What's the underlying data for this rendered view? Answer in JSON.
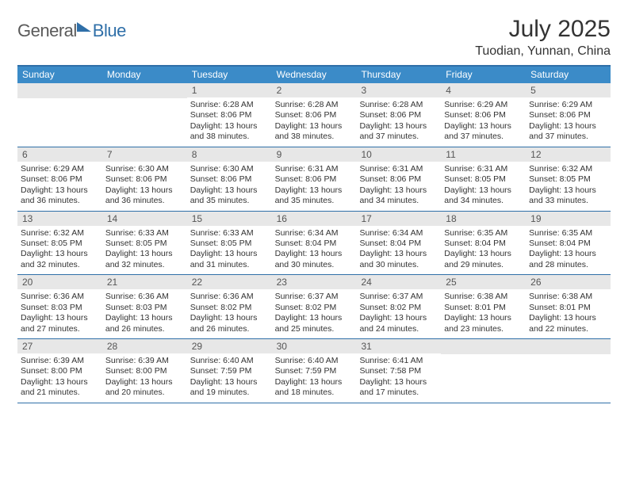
{
  "logo": {
    "general": "General",
    "blue": "Blue"
  },
  "title": "July 2025",
  "subtitle": "Tuodian, Yunnan, China",
  "weekdays": [
    "Sunday",
    "Monday",
    "Tuesday",
    "Wednesday",
    "Thursday",
    "Friday",
    "Saturday"
  ],
  "colors": {
    "header_bg": "#3b8bc8",
    "border": "#2f6fa8",
    "daynum_bg": "#e7e7e7",
    "text": "#333333",
    "white": "#ffffff"
  },
  "weeks": [
    [
      {
        "blank": true
      },
      {
        "blank": true
      },
      {
        "num": "1",
        "sunrise": "6:28 AM",
        "sunset": "8:06 PM",
        "daylight": "13 hours and 38 minutes."
      },
      {
        "num": "2",
        "sunrise": "6:28 AM",
        "sunset": "8:06 PM",
        "daylight": "13 hours and 38 minutes."
      },
      {
        "num": "3",
        "sunrise": "6:28 AM",
        "sunset": "8:06 PM",
        "daylight": "13 hours and 37 minutes."
      },
      {
        "num": "4",
        "sunrise": "6:29 AM",
        "sunset": "8:06 PM",
        "daylight": "13 hours and 37 minutes."
      },
      {
        "num": "5",
        "sunrise": "6:29 AM",
        "sunset": "8:06 PM",
        "daylight": "13 hours and 37 minutes."
      }
    ],
    [
      {
        "num": "6",
        "sunrise": "6:29 AM",
        "sunset": "8:06 PM",
        "daylight": "13 hours and 36 minutes."
      },
      {
        "num": "7",
        "sunrise": "6:30 AM",
        "sunset": "8:06 PM",
        "daylight": "13 hours and 36 minutes."
      },
      {
        "num": "8",
        "sunrise": "6:30 AM",
        "sunset": "8:06 PM",
        "daylight": "13 hours and 35 minutes."
      },
      {
        "num": "9",
        "sunrise": "6:31 AM",
        "sunset": "8:06 PM",
        "daylight": "13 hours and 35 minutes."
      },
      {
        "num": "10",
        "sunrise": "6:31 AM",
        "sunset": "8:06 PM",
        "daylight": "13 hours and 34 minutes."
      },
      {
        "num": "11",
        "sunrise": "6:31 AM",
        "sunset": "8:05 PM",
        "daylight": "13 hours and 34 minutes."
      },
      {
        "num": "12",
        "sunrise": "6:32 AM",
        "sunset": "8:05 PM",
        "daylight": "13 hours and 33 minutes."
      }
    ],
    [
      {
        "num": "13",
        "sunrise": "6:32 AM",
        "sunset": "8:05 PM",
        "daylight": "13 hours and 32 minutes."
      },
      {
        "num": "14",
        "sunrise": "6:33 AM",
        "sunset": "8:05 PM",
        "daylight": "13 hours and 32 minutes."
      },
      {
        "num": "15",
        "sunrise": "6:33 AM",
        "sunset": "8:05 PM",
        "daylight": "13 hours and 31 minutes."
      },
      {
        "num": "16",
        "sunrise": "6:34 AM",
        "sunset": "8:04 PM",
        "daylight": "13 hours and 30 minutes."
      },
      {
        "num": "17",
        "sunrise": "6:34 AM",
        "sunset": "8:04 PM",
        "daylight": "13 hours and 30 minutes."
      },
      {
        "num": "18",
        "sunrise": "6:35 AM",
        "sunset": "8:04 PM",
        "daylight": "13 hours and 29 minutes."
      },
      {
        "num": "19",
        "sunrise": "6:35 AM",
        "sunset": "8:04 PM",
        "daylight": "13 hours and 28 minutes."
      }
    ],
    [
      {
        "num": "20",
        "sunrise": "6:36 AM",
        "sunset": "8:03 PM",
        "daylight": "13 hours and 27 minutes."
      },
      {
        "num": "21",
        "sunrise": "6:36 AM",
        "sunset": "8:03 PM",
        "daylight": "13 hours and 26 minutes."
      },
      {
        "num": "22",
        "sunrise": "6:36 AM",
        "sunset": "8:02 PM",
        "daylight": "13 hours and 26 minutes."
      },
      {
        "num": "23",
        "sunrise": "6:37 AM",
        "sunset": "8:02 PM",
        "daylight": "13 hours and 25 minutes."
      },
      {
        "num": "24",
        "sunrise": "6:37 AM",
        "sunset": "8:02 PM",
        "daylight": "13 hours and 24 minutes."
      },
      {
        "num": "25",
        "sunrise": "6:38 AM",
        "sunset": "8:01 PM",
        "daylight": "13 hours and 23 minutes."
      },
      {
        "num": "26",
        "sunrise": "6:38 AM",
        "sunset": "8:01 PM",
        "daylight": "13 hours and 22 minutes."
      }
    ],
    [
      {
        "num": "27",
        "sunrise": "6:39 AM",
        "sunset": "8:00 PM",
        "daylight": "13 hours and 21 minutes."
      },
      {
        "num": "28",
        "sunrise": "6:39 AM",
        "sunset": "8:00 PM",
        "daylight": "13 hours and 20 minutes."
      },
      {
        "num": "29",
        "sunrise": "6:40 AM",
        "sunset": "7:59 PM",
        "daylight": "13 hours and 19 minutes."
      },
      {
        "num": "30",
        "sunrise": "6:40 AM",
        "sunset": "7:59 PM",
        "daylight": "13 hours and 18 minutes."
      },
      {
        "num": "31",
        "sunrise": "6:41 AM",
        "sunset": "7:58 PM",
        "daylight": "13 hours and 17 minutes."
      },
      {
        "blank": true
      },
      {
        "blank": true
      }
    ]
  ],
  "labels": {
    "sunrise_prefix": "Sunrise: ",
    "sunset_prefix": "Sunset: ",
    "daylight_prefix": "Daylight: "
  }
}
